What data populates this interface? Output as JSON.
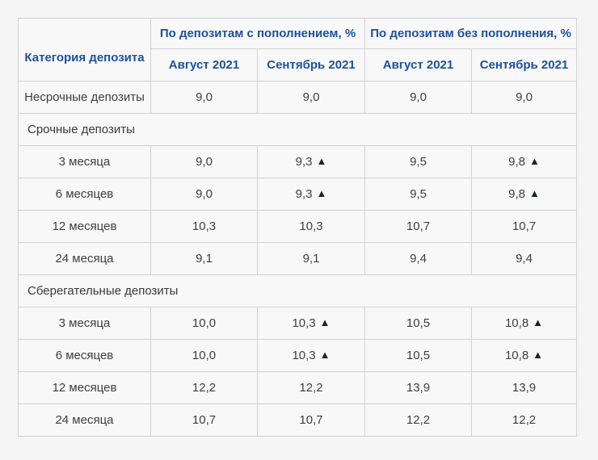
{
  "table": {
    "col_header_main": "Категория депозита",
    "group_headers": [
      "По депозитам с пополнением, %",
      "По депозитам без пополнения, %"
    ],
    "sub_headers": [
      "Август 2021",
      "Сентябрь 2021",
      "Август 2021",
      "Сентябрь 2021"
    ],
    "arrow_glyph": "▲",
    "rows": [
      {
        "type": "data",
        "label": "Несрочные депозиты",
        "values": [
          {
            "v": "9,0",
            "up": false
          },
          {
            "v": "9,0",
            "up": false
          },
          {
            "v": "9,0",
            "up": false
          },
          {
            "v": "9,0",
            "up": false
          }
        ]
      },
      {
        "type": "section",
        "label": "Срочные депозиты"
      },
      {
        "type": "data",
        "label": "3 месяца",
        "values": [
          {
            "v": "9,0",
            "up": false
          },
          {
            "v": "9,3",
            "up": true
          },
          {
            "v": "9,5",
            "up": false
          },
          {
            "v": "9,8",
            "up": true
          }
        ]
      },
      {
        "type": "data",
        "label": "6 месяцев",
        "values": [
          {
            "v": "9,0",
            "up": false
          },
          {
            "v": "9,3",
            "up": true
          },
          {
            "v": "9,5",
            "up": false
          },
          {
            "v": "9,8",
            "up": true
          }
        ]
      },
      {
        "type": "data",
        "label": "12 месяцев",
        "values": [
          {
            "v": "10,3",
            "up": false
          },
          {
            "v": "10,3",
            "up": false
          },
          {
            "v": "10,7",
            "up": false
          },
          {
            "v": "10,7",
            "up": false
          }
        ]
      },
      {
        "type": "data",
        "label": "24 месяца",
        "values": [
          {
            "v": "9,1",
            "up": false
          },
          {
            "v": "9,1",
            "up": false
          },
          {
            "v": "9,4",
            "up": false
          },
          {
            "v": "9,4",
            "up": false
          }
        ]
      },
      {
        "type": "section",
        "label": "Сберегательные депозиты"
      },
      {
        "type": "data",
        "label": "3 месяца",
        "values": [
          {
            "v": "10,0",
            "up": false
          },
          {
            "v": "10,3",
            "up": true
          },
          {
            "v": "10,5",
            "up": false
          },
          {
            "v": "10,8",
            "up": true
          }
        ]
      },
      {
        "type": "data",
        "label": "6 месяцев",
        "values": [
          {
            "v": "10,0",
            "up": false
          },
          {
            "v": "10,3",
            "up": true
          },
          {
            "v": "10,5",
            "up": false
          },
          {
            "v": "10,8",
            "up": true
          }
        ]
      },
      {
        "type": "data",
        "label": "12 месяцев",
        "values": [
          {
            "v": "12,2",
            "up": false
          },
          {
            "v": "12,2",
            "up": false
          },
          {
            "v": "13,9",
            "up": false
          },
          {
            "v": "13,9",
            "up": false
          }
        ]
      },
      {
        "type": "data",
        "label": "24 месяца",
        "values": [
          {
            "v": "10,7",
            "up": false
          },
          {
            "v": "10,7",
            "up": false
          },
          {
            "v": "12,2",
            "up": false
          },
          {
            "v": "12,2",
            "up": false
          }
        ]
      }
    ]
  },
  "colors": {
    "header_text": "#1d509c",
    "body_text": "#3e3e41",
    "arrow_up": "#1b2130",
    "cell_background": "#f8f8f9",
    "page_background": "#f5f5f6",
    "border": "#d2d2d5",
    "outer_border": "#b4b4b8"
  }
}
